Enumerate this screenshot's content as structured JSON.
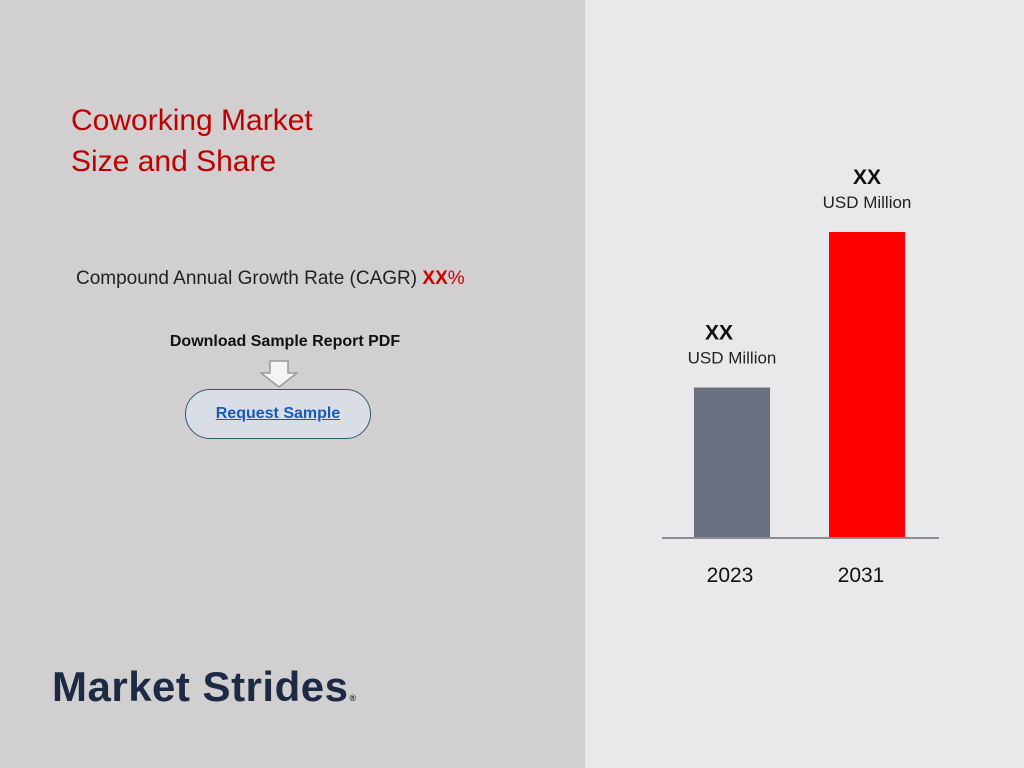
{
  "title_lines": [
    "Coworking Market",
    "Size and Share"
  ],
  "cagr": {
    "label": "Compound Annual Growth Rate (CAGR) ",
    "value": "XX",
    "unit": "%"
  },
  "download_label": "Download Sample Report PDF",
  "request_button": "Request Sample",
  "brand": {
    "name": "Market Strides",
    "reg": "®"
  },
  "colors": {
    "title": "#c00000",
    "bar_2023": "#6a7080",
    "bar_2031": "#ff0000",
    "brand": "#1d2a44"
  },
  "icons": {
    "download": "down-arrow-icon"
  },
  "chart_data": {
    "type": "bar",
    "categories": [
      "2023",
      "2031"
    ],
    "values": [
      49,
      100
    ],
    "value_labels": [
      "XX",
      "XX"
    ],
    "unit_labels": [
      "USD Million",
      "USD Million"
    ],
    "ylim": [
      0,
      100
    ],
    "grid": false,
    "legend": "none"
  }
}
